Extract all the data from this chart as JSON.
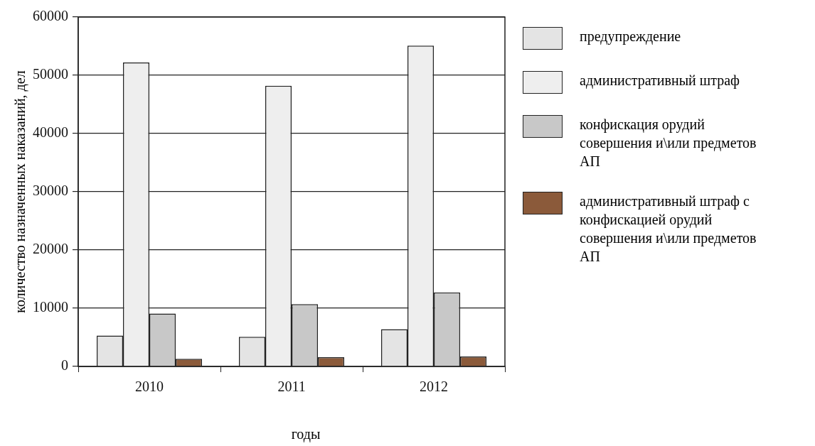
{
  "chart_data": {
    "type": "bar",
    "xlabel": "годы",
    "ylabel": "количество назначенных наказаний, дел",
    "categories": [
      "2010",
      "2011",
      "2012"
    ],
    "series": [
      {
        "name": "предупреждение",
        "color": "#e4e4e4",
        "values": [
          5300,
          5100,
          6400
        ]
      },
      {
        "name": "административный штраф",
        "color": "#eeeeee",
        "values": [
          52200,
          48200,
          55100
        ]
      },
      {
        "name": "конфискация орудий совершения и\\или предметов АП",
        "color": "#c8c8c8",
        "values": [
          9100,
          10700,
          12700
        ]
      },
      {
        "name": "административный штраф с конфискацией орудий совершения и\\или предметов АП",
        "color": "#8b5a3a",
        "values": [
          1300,
          1600,
          1700
        ]
      }
    ],
    "ylim": [
      0,
      60000
    ],
    "yticks": [
      0,
      10000,
      20000,
      30000,
      40000,
      50000,
      60000
    ],
    "grid": "y",
    "legend": "right"
  }
}
